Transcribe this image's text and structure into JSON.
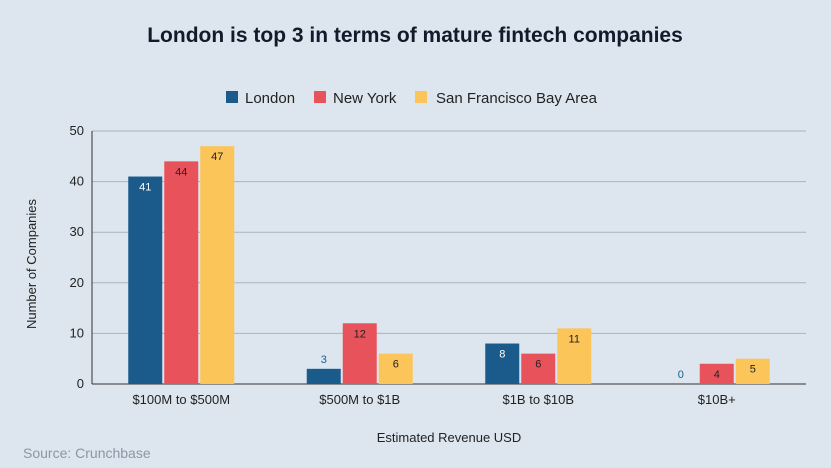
{
  "chart_data": {
    "type": "bar",
    "title": "London is top 3 in terms of mature fintech companies",
    "categories": [
      "$100M to $500M",
      "$500M to $1B",
      "$1B to $10B",
      "$10B+"
    ],
    "series": [
      {
        "name": "London",
        "color": "#1b5b8c",
        "values": [
          41,
          3,
          8,
          0
        ]
      },
      {
        "name": "New York",
        "color": "#e8535b",
        "values": [
          44,
          12,
          6,
          4
        ]
      },
      {
        "name": "San Francisco Bay Area",
        "color": "#fcc55a",
        "values": [
          47,
          6,
          11,
          5
        ]
      }
    ],
    "xlabel": "Estimated Revenue USD",
    "ylabel": "Number of Companies",
    "ylim": [
      0,
      50
    ],
    "yticks": [
      0,
      10,
      20,
      30,
      40,
      50
    ],
    "grid": true,
    "legend": "top-center"
  },
  "source": "Source: Crunchbase"
}
